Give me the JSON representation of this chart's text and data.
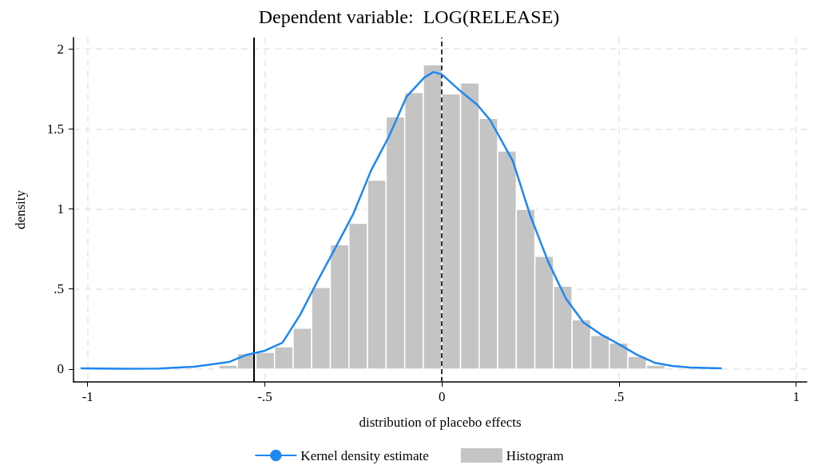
{
  "chart_data": {
    "type": "histogram",
    "title": "Dependent variable:  LOG(RELEASE)",
    "xlabel": "distribution of placebo effects",
    "ylabel": "density",
    "bins": [
      -0.63,
      -0.5775,
      -0.525,
      -0.4725,
      -0.42,
      -0.3675,
      -0.315,
      -0.2625,
      -0.21,
      -0.1575,
      -0.105,
      -0.0525,
      0,
      0.0525,
      0.105,
      0.1575,
      0.21,
      0.2625,
      0.315,
      0.3675,
      0.42,
      0.4725,
      0.525,
      0.5775,
      0.63
    ],
    "series": [
      {
        "name": "Kernel density estimate",
        "type": "line",
        "color": "#1e88f0",
        "x": [
          -1.02,
          -0.9,
          -0.8,
          -0.7,
          -0.65,
          -0.6,
          -0.55,
          -0.5,
          -0.45,
          -0.4,
          -0.35,
          -0.3,
          -0.25,
          -0.2,
          -0.15,
          -0.1,
          -0.05,
          -0.024,
          0,
          0.05,
          0.1,
          0.136,
          0.2,
          0.25,
          0.3,
          0.35,
          0.4,
          0.45,
          0.5,
          0.55,
          0.6,
          0.65,
          0.7,
          0.79
        ],
        "values": [
          0.005,
          0.002,
          0.003,
          0.015,
          0.03,
          0.045,
          0.09,
          0.115,
          0.165,
          0.34,
          0.555,
          0.76,
          0.97,
          1.24,
          1.45,
          1.7,
          1.82,
          1.855,
          1.84,
          1.74,
          1.65,
          1.555,
          1.3,
          0.955,
          0.67,
          0.44,
          0.29,
          0.215,
          0.155,
          0.09,
          0.04,
          0.02,
          0.01,
          0.005
        ]
      },
      {
        "name": "Histogram",
        "type": "histogram",
        "color": "#c4c4c4",
        "values": [
          0.025,
          0.097,
          0.105,
          0.14,
          0.255,
          0.51,
          0.777,
          0.91,
          1.18,
          1.575,
          1.727,
          1.9,
          1.718,
          1.787,
          1.565,
          1.362,
          0.997,
          0.705,
          0.517,
          0.308,
          0.21,
          0.163,
          0.08,
          0.025
        ]
      }
    ],
    "xlim": [
      -1.04,
      1.03
    ],
    "ylim": [
      -0.08,
      2.07
    ],
    "xticks": [
      {
        "value": -1,
        "label": "-1"
      },
      {
        "value": -0.5,
        "label": "-.5"
      },
      0,
      {
        "value": 0.5,
        "label": ".5"
      },
      1
    ],
    "yticks": [
      0,
      {
        "value": 0.5,
        "label": ".5"
      },
      1,
      1.5,
      2
    ],
    "ref_lines": [
      {
        "axis": "x",
        "value": -0.53,
        "color": "#000000",
        "line_style": "solid"
      },
      {
        "axis": "x",
        "value": 0,
        "color": "#333333",
        "line_style": "dashed"
      }
    ],
    "grid": true,
    "legend": "bottom"
  }
}
